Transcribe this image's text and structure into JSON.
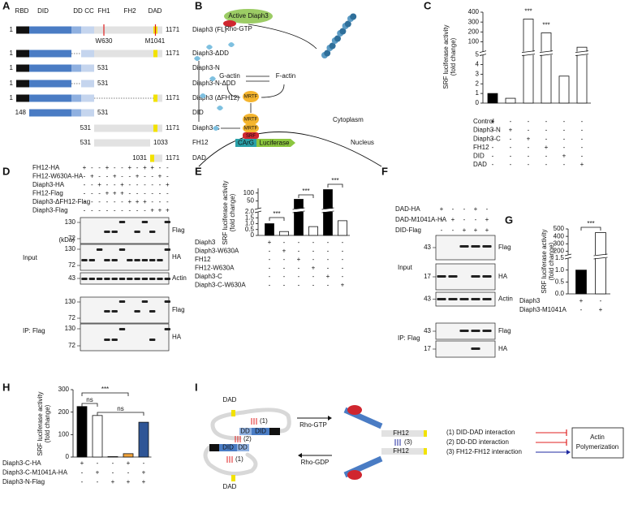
{
  "panel_labels": [
    "A",
    "B",
    "C",
    "D",
    "E",
    "F",
    "G",
    "H",
    "I"
  ],
  "panel_A": {
    "domains": [
      "RBD",
      "DID",
      "DD",
      "CC",
      "FH1",
      "FH2",
      "DAD"
    ],
    "mutations": [
      "W630",
      "M1041"
    ],
    "constructs": [
      {
        "name": "Diaph3 (FL)",
        "start": "1",
        "end": "1171"
      },
      {
        "name": "Diaph3-ΔDD",
        "start": "1",
        "end": "1171"
      },
      {
        "name": "Diaph3-N",
        "start": "1",
        "end": "531"
      },
      {
        "name": "Diaph3-N-ΔDD",
        "start": "1",
        "end": "531"
      },
      {
        "name": "Diaph3 (ΔFH12)",
        "start": "1",
        "end": "1171"
      },
      {
        "name": "DID",
        "start": "148",
        "end": "531"
      },
      {
        "name": "Diaph3-C",
        "start": "531",
        "end": "1171"
      },
      {
        "name": "FH12",
        "start": "531",
        "end": "1033"
      },
      {
        "name": "DAD",
        "start": "1031",
        "end": "1171"
      }
    ]
  },
  "panel_B": {
    "active": "Active Diaph3",
    "rho": "Rho-GTP",
    "g_actin": "G-actin",
    "f_actin": "F-actin",
    "mrtf": [
      "MRTF",
      "MRTF",
      "MRTF"
    ],
    "srf": "SRF",
    "carg": "CArG",
    "luciferase": "Luciferase",
    "cytoplasm": "Cytoplasm",
    "nucleus": "Nucleus"
  },
  "panel_D": {
    "conditions": [
      {
        "name": "FH12-HA",
        "signs": [
          "+",
          "-",
          "-",
          "+",
          "-",
          "-",
          "+",
          "-",
          "+",
          "+",
          "-",
          "-"
        ]
      },
      {
        "name": "FH12-W630A-HA",
        "signs": [
          "-",
          "+",
          "-",
          "-",
          "+",
          "-",
          "-",
          "+",
          "-",
          "-",
          "+",
          "-"
        ]
      },
      {
        "name": "Diaph3-HA",
        "signs": [
          "-",
          "-",
          "+",
          "-",
          "-",
          "+",
          "-",
          "-",
          "-",
          "-",
          "-",
          "+"
        ]
      },
      {
        "name": "FH12-Flag",
        "signs": [
          "-",
          "-",
          "-",
          "+",
          "+",
          "+",
          "-",
          "-",
          "-",
          "-",
          "-",
          "-"
        ]
      },
      {
        "name": "Diaph3-ΔFH12-Flag",
        "signs": [
          "-",
          "-",
          "-",
          "-",
          "-",
          "-",
          "+",
          "+",
          "+",
          "-",
          "-",
          "-"
        ]
      },
      {
        "name": "Diaph3-Flag",
        "signs": [
          "-",
          "-",
          "-",
          "-",
          "-",
          "-",
          "-",
          "-",
          "-",
          "+",
          "+",
          "+"
        ]
      }
    ],
    "unit": "(kDa)",
    "groups": [
      "Input",
      "IP: Flag"
    ],
    "blots": [
      {
        "markers": [
          "130",
          "72"
        ],
        "label": "Flag"
      },
      {
        "markers": [
          "130",
          "72"
        ],
        "label": "HA"
      },
      {
        "markers": [
          "43"
        ],
        "label": "Actin"
      },
      {
        "markers": [
          "130",
          "72"
        ],
        "label": "Flag"
      },
      {
        "markers": [
          "130",
          "72"
        ],
        "label": "HA"
      }
    ]
  },
  "panel_F": {
    "conditions": [
      {
        "name": "DAD-HA",
        "signs": [
          "+",
          "-",
          "-",
          "+",
          "-"
        ]
      },
      {
        "name": "DAD-M1041A-HA",
        "signs": [
          "-",
          "+",
          "-",
          "-",
          "+"
        ]
      },
      {
        "name": "DID-Flag",
        "signs": [
          "-",
          "-",
          "+",
          "+",
          "+"
        ]
      }
    ],
    "groups": [
      "Input",
      "IP: Flag"
    ],
    "blots": [
      {
        "markers": [
          "43"
        ],
        "label": "Flag"
      },
      {
        "markers": [
          "17"
        ],
        "label": "HA"
      },
      {
        "markers": [
          "43"
        ],
        "label": "Actin"
      },
      {
        "markers": [
          "43"
        ],
        "label": "Flag"
      },
      {
        "markers": [
          "17"
        ],
        "label": "HA"
      }
    ]
  },
  "panel_I": {
    "top_dad": "DAD",
    "bottom_dad": "DAD",
    "upper_domains": [
      "DD",
      "DID"
    ],
    "lower_domains": [
      "DID",
      "DD"
    ],
    "steps": [
      "(1)",
      "(2)",
      "(1)"
    ],
    "rho_gtp": "Rho-GTP",
    "rho_gdp": "Rho-GDP",
    "fh12": [
      "FH12",
      "FH12"
    ],
    "step3": "(3)",
    "legend": [
      "(1) DID-DAD interaction",
      "(2) DD-DD interaction",
      "(3) FH12-FH12 interaction"
    ],
    "outcome": [
      "Actin",
      "Polymerization"
    ]
  },
  "chart_data": [
    {
      "type": "bar",
      "ylabel": [
        "SRF luciferase activity",
        "(fold change)"
      ],
      "conditions": [
        {
          "name": "Control",
          "signs": [
            "+",
            "-",
            "-",
            "-",
            "-",
            "-"
          ]
        },
        {
          "name": "Diaph3-N",
          "signs": [
            "-",
            "+",
            "-",
            "-",
            "-",
            "-"
          ]
        },
        {
          "name": "Diaph3-C",
          "signs": [
            "-",
            "-",
            "+",
            "-",
            "-",
            "-"
          ]
        },
        {
          "name": "FH12",
          "signs": [
            "-",
            "-",
            "-",
            "+",
            "-",
            "-"
          ]
        },
        {
          "name": "DID",
          "signs": [
            "-",
            "-",
            "-",
            "-",
            "+",
            "-"
          ]
        },
        {
          "name": "DAD",
          "signs": [
            "-",
            "-",
            "-",
            "-",
            "-",
            "+"
          ]
        }
      ],
      "values": [
        1,
        0.5,
        330,
        190,
        2.8,
        45
      ],
      "colors": [
        "#000000",
        "#ffffff",
        "#ffffff",
        "#ffffff",
        "#ffffff",
        "#ffffff"
      ],
      "ylim": [
        0,
        400
      ],
      "ybreak": [
        5,
        0
      ],
      "yticks": [
        0,
        1,
        2,
        3,
        4,
        5,
        100,
        200,
        300,
        400
      ],
      "annotations": [
        "***",
        "***"
      ]
    },
    {
      "type": "bar",
      "ylabel": [
        "SRF luciferase activity",
        "(fold change)"
      ],
      "conditions": [
        {
          "name": "Diaph3",
          "signs": [
            "+",
            "-",
            "-",
            "-",
            "-",
            "-"
          ]
        },
        {
          "name": "Diaph3-W630A",
          "signs": [
            "-",
            "+",
            "-",
            "-",
            "-",
            "-"
          ]
        },
        {
          "name": "FH12",
          "signs": [
            "-",
            "-",
            "+",
            "-",
            "-",
            "-"
          ]
        },
        {
          "name": "FH12-W630A",
          "signs": [
            "-",
            "-",
            "-",
            "+",
            "-",
            "-"
          ]
        },
        {
          "name": "Diaph3-C",
          "signs": [
            "-",
            "-",
            "-",
            "-",
            "+",
            "-"
          ]
        },
        {
          "name": "Diaph3-C-W630A",
          "signs": [
            "-",
            "-",
            "-",
            "-",
            "-",
            "+"
          ]
        }
      ],
      "values": [
        1.0,
        0.33,
        60,
        0.75,
        122,
        1.25
      ],
      "colors": [
        "#000000",
        "#ffffff",
        "#000000",
        "#ffffff",
        "#000000",
        "#ffffff"
      ],
      "ylim": [
        0,
        130
      ],
      "ybreak": [
        2,
        0
      ],
      "yticks": [
        0,
        0.5,
        {
          "value": 1,
          "label": "1.0"
        },
        1.5,
        {
          "value": 2,
          "label": "2.0"
        },
        50,
        100
      ],
      "annotations": [
        "***",
        "***",
        "***"
      ]
    },
    {
      "type": "bar",
      "ylabel": [
        "SRF luciferase activity",
        "(fold change)"
      ],
      "conditions": [
        {
          "name": "Diaph3",
          "signs": [
            "+",
            "-"
          ]
        },
        {
          "name": "Diaph3-M1041A",
          "signs": [
            "-",
            "+"
          ]
        }
      ],
      "values": [
        1.0,
        450
      ],
      "colors": [
        "#000000",
        "#ffffff"
      ],
      "ylim": [
        0,
        500
      ],
      "ybreak": [
        1.5,
        150
      ],
      "yticks": [
        {
          "value": 0,
          "label": "0.0"
        },
        0.5,
        {
          "value": 1,
          "label": "1.0"
        },
        1.5,
        200,
        300,
        400,
        500
      ],
      "annotations": [
        "***"
      ]
    },
    {
      "type": "bar",
      "ylabel": [
        "SRF luciferase activity",
        "(fold change)"
      ],
      "conditions": [
        {
          "name": "Diaph3-C-HA",
          "signs": [
            "+",
            "-",
            "-",
            "+",
            "-"
          ]
        },
        {
          "name": "Diaph3-C-M1041A-HA",
          "signs": [
            "-",
            "+",
            "-",
            "-",
            "+"
          ]
        },
        {
          "name": "Diaph3-N-Flag",
          "signs": [
            "-",
            "-",
            "+",
            "+",
            "+"
          ]
        }
      ],
      "values": [
        225,
        185,
        2,
        15,
        155
      ],
      "colors": [
        "#000000",
        "#ffffff",
        "#ffffff",
        "#f2a33a",
        "#2f5596"
      ],
      "ylim": [
        0,
        300
      ],
      "yticks": [
        0,
        100,
        200,
        300
      ],
      "annotations": [
        "***",
        "ns",
        "ns"
      ]
    }
  ]
}
